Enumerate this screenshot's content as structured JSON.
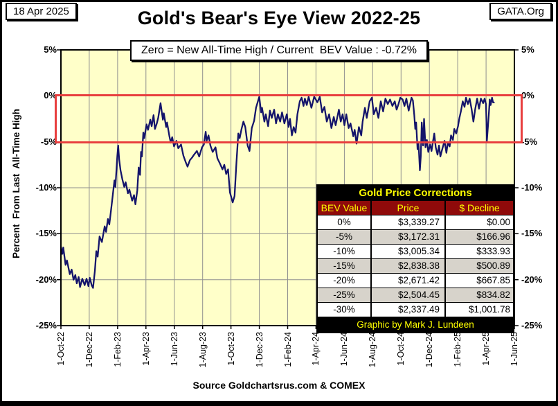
{
  "header": {
    "date_box": "18 Apr 2025",
    "org_box": "GATA.Org",
    "title": "Gold's Bear's Eye View 2022-25",
    "legend": "Zero = New All-Time High / Current  BEV Value : -0.72%"
  },
  "footer": {
    "source": "Source Goldchartsrus.com & COMEX"
  },
  "axes": {
    "y_label": "Percent  From Last  All-Time High",
    "y_ticks": [
      {
        "value": 5,
        "label": "5%"
      },
      {
        "value": 0,
        "label": "0%"
      },
      {
        "value": -5,
        "label": "-5%"
      },
      {
        "value": -10,
        "label": "-10%"
      },
      {
        "value": -15,
        "label": "-15%"
      },
      {
        "value": -20,
        "label": "-20%"
      },
      {
        "value": -25,
        "label": "-25%"
      }
    ],
    "x_ticks": [
      "1-Oct-22",
      "1-Dec-22",
      "1-Feb-23",
      "1-Apr-23",
      "1-Jun-23",
      "1-Aug-23",
      "1-Oct-23",
      "1-Dec-23",
      "1-Feb-24",
      "1-Apr-24",
      "1-Jun-24",
      "1-Aug-24",
      "1-Oct-24",
      "1-Dec-24",
      "1-Feb-25",
      "1-Apr-25",
      "1-Jun-25"
    ]
  },
  "table": {
    "title": "Gold Price Corrections",
    "columns": [
      "BEV Value",
      "Price",
      "$ Decline"
    ],
    "rows": [
      [
        "0%",
        "$3,339.27",
        "$0.00"
      ],
      [
        "-5%",
        "$3,172.31",
        "$166.96"
      ],
      [
        "-10%",
        "$3,005.34",
        "$333.93"
      ],
      [
        "-15%",
        "$2,838.38",
        "$500.89"
      ],
      [
        "-20%",
        "$2,671.42",
        "$667.85"
      ],
      [
        "-25%",
        "$2,504.45",
        "$834.82"
      ],
      [
        "-30%",
        "$2,337.49",
        "$1,001.78"
      ]
    ],
    "footer": "Graphic by Mark J. Lundeen"
  },
  "colors": {
    "plot_bg": "#ffffc9",
    "grid": "#8f8f8f",
    "axis": "#000000",
    "line": "#14146b",
    "band": "#e83e3e",
    "table_header_bg": "#8f0a0a",
    "table_accent_text": "#ffff00",
    "table_alt_row": "#d7d3cb"
  },
  "chart_data": {
    "type": "line",
    "title": "Gold's Bear's Eye View 2022-25",
    "xlabel": "",
    "ylabel": "Percent From Last All-Time High",
    "x_range": [
      "2022-10-01",
      "2025-06-01"
    ],
    "ylim": [
      -25,
      5
    ],
    "grid": true,
    "y_gridlines_pct": [
      5,
      0,
      -5,
      -10,
      -15,
      -20,
      -25
    ],
    "highlight_band_pct": [
      0,
      -5
    ],
    "annotation": "Zero = New All-Time High / Current BEV Value : -0.72%",
    "current_bev_value": -0.72,
    "series": [
      {
        "name": "Gold BEV (% from last all-time high)",
        "color": "#14146b",
        "points": [
          [
            "2022-10-01",
            -16.4
          ],
          [
            "2022-10-04",
            -17.2
          ],
          [
            "2022-10-06",
            -16.5
          ],
          [
            "2022-10-11",
            -18.4
          ],
          [
            "2022-10-14",
            -17.9
          ],
          [
            "2022-10-20",
            -19.4
          ],
          [
            "2022-10-24",
            -18.9
          ],
          [
            "2022-10-28",
            -20.0
          ],
          [
            "2022-11-01",
            -19.5
          ],
          [
            "2022-11-04",
            -20.4
          ],
          [
            "2022-11-08",
            -19.7
          ],
          [
            "2022-11-11",
            -20.8
          ],
          [
            "2022-11-16",
            -19.9
          ],
          [
            "2022-11-21",
            -20.6
          ],
          [
            "2022-11-25",
            -19.9
          ],
          [
            "2022-11-29",
            -20.7
          ],
          [
            "2022-12-02",
            -19.8
          ],
          [
            "2022-12-06",
            -20.6
          ],
          [
            "2022-12-09",
            -20.9
          ],
          [
            "2022-12-13",
            -19.0
          ],
          [
            "2022-12-16",
            -16.9
          ],
          [
            "2022-12-19",
            -17.5
          ],
          [
            "2022-12-23",
            -15.3
          ],
          [
            "2022-12-28",
            -15.9
          ],
          [
            "2023-01-03",
            -14.2
          ],
          [
            "2023-01-06",
            -14.8
          ],
          [
            "2023-01-10",
            -13.4
          ],
          [
            "2023-01-13",
            -14.0
          ],
          [
            "2023-01-17",
            -12.3
          ],
          [
            "2023-01-20",
            -11.0
          ],
          [
            "2023-01-24",
            -9.2
          ],
          [
            "2023-01-26",
            -9.9
          ],
          [
            "2023-01-30",
            -6.6
          ],
          [
            "2023-02-01",
            -5.4
          ],
          [
            "2023-02-03",
            -6.9
          ],
          [
            "2023-02-06",
            -8.1
          ],
          [
            "2023-02-10",
            -9.1
          ],
          [
            "2023-02-14",
            -9.9
          ],
          [
            "2023-02-17",
            -9.4
          ],
          [
            "2023-02-22",
            -10.6
          ],
          [
            "2023-02-25",
            -10.2
          ],
          [
            "2023-03-03",
            -11.4
          ],
          [
            "2023-03-07",
            -10.8
          ],
          [
            "2023-03-10",
            -11.8
          ],
          [
            "2023-03-14",
            -10.3
          ],
          [
            "2023-03-17",
            -7.8
          ],
          [
            "2023-03-20",
            -8.6
          ],
          [
            "2023-03-22",
            -6.1
          ],
          [
            "2023-03-24",
            -6.6
          ],
          [
            "2023-03-27",
            -4.0
          ],
          [
            "2023-03-29",
            -4.6
          ],
          [
            "2023-04-03",
            -3.1
          ],
          [
            "2023-04-06",
            -3.7
          ],
          [
            "2023-04-11",
            -2.6
          ],
          [
            "2023-04-14",
            -3.3
          ],
          [
            "2023-04-18",
            -2.1
          ],
          [
            "2023-04-21",
            -3.6
          ],
          [
            "2023-04-25",
            -3.0
          ],
          [
            "2023-04-28",
            -2.4
          ],
          [
            "2023-05-03",
            -0.8
          ],
          [
            "2023-05-08",
            -2.6
          ],
          [
            "2023-05-10",
            -1.9
          ],
          [
            "2023-05-15",
            -3.4
          ],
          [
            "2023-05-17",
            -2.9
          ],
          [
            "2023-05-22",
            -4.4
          ],
          [
            "2023-05-25",
            -5.1
          ],
          [
            "2023-05-28",
            -4.5
          ],
          [
            "2023-06-01",
            -5.5
          ],
          [
            "2023-06-06",
            -4.9
          ],
          [
            "2023-06-10",
            -5.7
          ],
          [
            "2023-06-16",
            -5.3
          ],
          [
            "2023-06-21",
            -6.5
          ],
          [
            "2023-06-26",
            -7.2
          ],
          [
            "2023-06-30",
            -7.7
          ],
          [
            "2023-07-05",
            -7.0
          ],
          [
            "2023-07-10",
            -6.7
          ],
          [
            "2023-07-14",
            -6.4
          ],
          [
            "2023-07-20",
            -6.0
          ],
          [
            "2023-07-25",
            -6.6
          ],
          [
            "2023-07-31",
            -5.6
          ],
          [
            "2023-08-04",
            -5.3
          ],
          [
            "2023-08-08",
            -3.9
          ],
          [
            "2023-08-10",
            -4.9
          ],
          [
            "2023-08-14",
            -4.3
          ],
          [
            "2023-08-18",
            -5.4
          ],
          [
            "2023-08-23",
            -6.1
          ],
          [
            "2023-08-29",
            -5.6
          ],
          [
            "2023-09-02",
            -6.8
          ],
          [
            "2023-09-07",
            -7.3
          ],
          [
            "2023-09-13",
            -8.0
          ],
          [
            "2023-09-17",
            -7.5
          ],
          [
            "2023-09-21",
            -8.5
          ],
          [
            "2023-09-25",
            -8.0
          ],
          [
            "2023-09-29",
            -10.5
          ],
          [
            "2023-10-05",
            -11.6
          ],
          [
            "2023-10-09",
            -10.9
          ],
          [
            "2023-10-13",
            -7.3
          ],
          [
            "2023-10-17",
            -4.1
          ],
          [
            "2023-10-20",
            -4.6
          ],
          [
            "2023-10-24",
            -3.6
          ],
          [
            "2023-10-28",
            -2.8
          ],
          [
            "2023-11-01",
            -3.4
          ],
          [
            "2023-11-06",
            -5.4
          ],
          [
            "2023-11-10",
            -6.0
          ],
          [
            "2023-11-15",
            -3.5
          ],
          [
            "2023-11-20",
            -2.7
          ],
          [
            "2023-11-24",
            -1.3
          ],
          [
            "2023-12-01",
            -0.1
          ],
          [
            "2023-12-05",
            -1.8
          ],
          [
            "2023-12-07",
            -1.3
          ],
          [
            "2023-12-12",
            -2.8
          ],
          [
            "2023-12-15",
            -2.0
          ],
          [
            "2023-12-20",
            -3.3
          ],
          [
            "2023-12-24",
            -1.6
          ],
          [
            "2023-12-28",
            -2.4
          ],
          [
            "2024-01-02",
            -1.5
          ],
          [
            "2024-01-06",
            -3.0
          ],
          [
            "2024-01-10",
            -2.0
          ],
          [
            "2024-01-15",
            -2.8
          ],
          [
            "2024-01-19",
            -1.8
          ],
          [
            "2024-01-24",
            -3.0
          ],
          [
            "2024-01-29",
            -2.0
          ],
          [
            "2024-02-02",
            -3.4
          ],
          [
            "2024-02-05",
            -2.5
          ],
          [
            "2024-02-09",
            -4.3
          ],
          [
            "2024-02-13",
            -3.4
          ],
          [
            "2024-02-17",
            -4.0
          ],
          [
            "2024-02-21",
            -2.0
          ],
          [
            "2024-02-26",
            -0.6
          ],
          [
            "2024-03-01",
            -0.2
          ],
          [
            "2024-03-05",
            -1.1
          ],
          [
            "2024-03-08",
            -0.3
          ],
          [
            "2024-03-12",
            -1.0
          ],
          [
            "2024-03-16",
            -0.1
          ],
          [
            "2024-03-22",
            -1.3
          ],
          [
            "2024-03-28",
            -0.1
          ],
          [
            "2024-04-04",
            -0.7
          ],
          [
            "2024-04-09",
            -0.1
          ],
          [
            "2024-04-14",
            -1.8
          ],
          [
            "2024-04-19",
            -1.2
          ],
          [
            "2024-04-24",
            -2.8
          ],
          [
            "2024-04-29",
            -2.0
          ],
          [
            "2024-05-04",
            -3.5
          ],
          [
            "2024-05-09",
            -2.3
          ],
          [
            "2024-05-13",
            -3.2
          ],
          [
            "2024-05-20",
            -1.5
          ],
          [
            "2024-05-24",
            -2.8
          ],
          [
            "2024-05-28",
            -2.0
          ],
          [
            "2024-06-01",
            -3.2
          ],
          [
            "2024-06-05",
            -2.0
          ],
          [
            "2024-06-10",
            -3.5
          ],
          [
            "2024-06-14",
            -3.0
          ],
          [
            "2024-06-20",
            -4.4
          ],
          [
            "2024-06-23",
            -3.7
          ],
          [
            "2024-06-27",
            -5.2
          ],
          [
            "2024-07-02",
            -3.4
          ],
          [
            "2024-07-07",
            -4.3
          ],
          [
            "2024-07-10",
            -2.8
          ],
          [
            "2024-07-15",
            -1.3
          ],
          [
            "2024-07-19",
            -2.4
          ],
          [
            "2024-07-25",
            -0.6
          ],
          [
            "2024-07-30",
            -0.2
          ],
          [
            "2024-08-03",
            -2.0
          ],
          [
            "2024-08-08",
            -1.3
          ],
          [
            "2024-08-13",
            -2.4
          ],
          [
            "2024-08-18",
            -0.6
          ],
          [
            "2024-08-23",
            -1.7
          ],
          [
            "2024-08-28",
            -0.3
          ],
          [
            "2024-09-02",
            -0.9
          ],
          [
            "2024-09-07",
            -0.4
          ],
          [
            "2024-09-12",
            -1.1
          ],
          [
            "2024-09-17",
            -0.6
          ],
          [
            "2024-09-21",
            -1.5
          ],
          [
            "2024-09-25",
            -0.9
          ],
          [
            "2024-09-29",
            -0.2
          ],
          [
            "2024-10-04",
            -0.4
          ],
          [
            "2024-10-08",
            -1.1
          ],
          [
            "2024-10-12",
            -0.3
          ],
          [
            "2024-10-17",
            -1.6
          ],
          [
            "2024-10-20",
            -0.9
          ],
          [
            "2024-10-23",
            -0.2
          ],
          [
            "2024-10-26",
            -0.5
          ],
          [
            "2024-10-29",
            -2.1
          ],
          [
            "2024-10-31",
            -3.6
          ],
          [
            "2024-11-02",
            -2.9
          ],
          [
            "2024-11-05",
            -5.8
          ],
          [
            "2024-11-07",
            -5.1
          ],
          [
            "2024-11-10",
            -8.1
          ],
          [
            "2024-11-12",
            -6.6
          ],
          [
            "2024-11-14",
            -2.9
          ],
          [
            "2024-11-17",
            -5.4
          ],
          [
            "2024-11-19",
            -2.5
          ],
          [
            "2024-11-22",
            -5.6
          ],
          [
            "2024-11-25",
            -4.8
          ],
          [
            "2024-11-28",
            -6.1
          ],
          [
            "2024-12-02",
            -5.3
          ],
          [
            "2024-12-05",
            -6.0
          ],
          [
            "2024-12-08",
            -5.0
          ],
          [
            "2024-12-11",
            -4.1
          ],
          [
            "2024-12-14",
            -5.6
          ],
          [
            "2024-12-18",
            -6.4
          ],
          [
            "2024-12-21",
            -5.4
          ],
          [
            "2024-12-24",
            -6.6
          ],
          [
            "2024-12-28",
            -5.8
          ],
          [
            "2025-01-02",
            -4.9
          ],
          [
            "2025-01-06",
            -6.2
          ],
          [
            "2025-01-09",
            -5.1
          ],
          [
            "2025-01-13",
            -5.5
          ],
          [
            "2025-01-16",
            -4.3
          ],
          [
            "2025-01-20",
            -4.8
          ],
          [
            "2025-01-23",
            -3.6
          ],
          [
            "2025-01-27",
            -4.1
          ],
          [
            "2025-01-31",
            -3.3
          ],
          [
            "2025-02-03",
            -2.4
          ],
          [
            "2025-02-06",
            -1.7
          ],
          [
            "2025-02-10",
            -0.6
          ],
          [
            "2025-02-14",
            -1.2
          ],
          [
            "2025-02-17",
            -0.2
          ],
          [
            "2025-02-21",
            -0.9
          ],
          [
            "2025-02-25",
            -0.3
          ],
          [
            "2025-03-01",
            -1.4
          ],
          [
            "2025-03-05",
            -2.8
          ],
          [
            "2025-03-09",
            -1.4
          ],
          [
            "2025-03-13",
            -0.3
          ],
          [
            "2025-03-17",
            -1.4
          ],
          [
            "2025-03-21",
            -0.3
          ],
          [
            "2025-03-26",
            -0.8
          ],
          [
            "2025-03-29",
            -0.3
          ],
          [
            "2025-04-01",
            -0.9
          ],
          [
            "2025-04-03",
            -4.9
          ],
          [
            "2025-04-07",
            -2.1
          ],
          [
            "2025-04-09",
            -0.4
          ],
          [
            "2025-04-11",
            -1.0
          ],
          [
            "2025-04-14",
            -0.2
          ],
          [
            "2025-04-16",
            -0.7
          ],
          [
            "2025-04-18",
            -0.72
          ]
        ]
      }
    ]
  }
}
